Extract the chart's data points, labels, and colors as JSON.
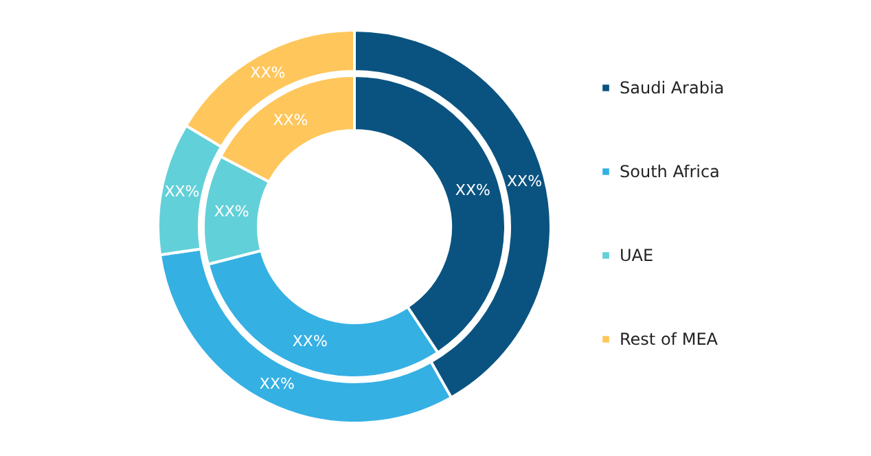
{
  "chart_data": {
    "type": "donut",
    "categories": [
      "Saudi Arabia",
      "South Africa",
      "UAE",
      "Rest of MEA"
    ],
    "colors": [
      "#0a5380",
      "#35b0e3",
      "#62d0d8",
      "#ffc65c"
    ],
    "series": [
      {
        "values": [
          41.8,
          30.9,
          10.9,
          16.4
        ],
        "value_labels": [
          "XX%",
          "XX%",
          "XX%",
          "XX%"
        ]
      },
      {
        "values": [
          40.7,
          30.3,
          11.7,
          17.3
        ],
        "value_labels": [
          "XX%",
          "XX%",
          "XX%",
          "XX%"
        ]
      }
    ],
    "legend": "right"
  }
}
